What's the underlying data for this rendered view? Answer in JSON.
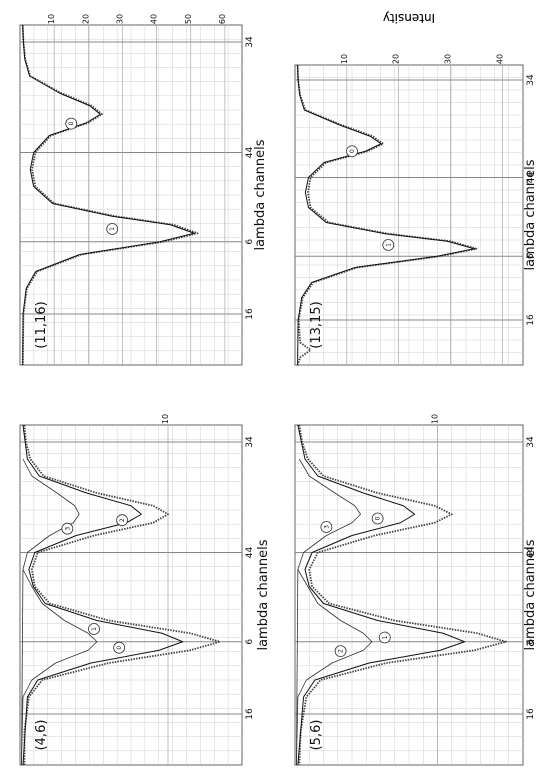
{
  "figure": {
    "shared_x_label": "lambda channels",
    "shared_y_label": "Intensity"
  },
  "chart_data": [
    {
      "type": "line",
      "title": "(4,6)",
      "xlabel": "lambda channels",
      "ylabel": "",
      "x_ticks": [
        "34",
        "44",
        "6",
        "16"
      ],
      "y_ticks": [
        "10"
      ],
      "ylim": [
        0,
        15
      ],
      "grid": true,
      "series": [
        {
          "values": [
            [
              0,
              0.3
            ],
            [
              2,
              0.4
            ],
            [
              4,
              0.7
            ],
            [
              6,
              1.6
            ],
            [
              8,
              5.2
            ],
            [
              9.5,
              9.0
            ],
            [
              10.5,
              10.0
            ],
            [
              11.5,
              9.0
            ],
            [
              13,
              5.0
            ],
            [
              15,
              1.2
            ],
            [
              17,
              0.8
            ],
            [
              19,
              1.0
            ],
            [
              21,
              2.0
            ],
            [
              23,
              6.0
            ],
            [
              24.5,
              11.5
            ],
            [
              25.5,
              13.5
            ],
            [
              26.5,
              11.5
            ],
            [
              28,
              6.0
            ],
            [
              30,
              1.5
            ],
            [
              32,
              0.6
            ],
            [
              36,
              0.3
            ],
            [
              40,
              0.3
            ]
          ]
        },
        {
          "values": [
            [
              0,
              0.2
            ],
            [
              4,
              0.5
            ],
            [
              6,
              1.3
            ],
            [
              8,
              4.5
            ],
            [
              9.5,
              7.5
            ],
            [
              10.5,
              8.2
            ],
            [
              11.5,
              7.2
            ],
            [
              13,
              3.8
            ],
            [
              15,
              1.0
            ],
            [
              17,
              0.6
            ],
            [
              19,
              0.9
            ],
            [
              21,
              1.7
            ],
            [
              23,
              5.2
            ],
            [
              24.5,
              9.6
            ],
            [
              25.5,
              11.0
            ],
            [
              26.5,
              9.4
            ],
            [
              28,
              4.8
            ],
            [
              30,
              1.2
            ],
            [
              32,
              0.5
            ],
            [
              40,
              0.2
            ]
          ]
        },
        {
          "values": [
            [
              4,
              0.2
            ],
            [
              6,
              0.8
            ],
            [
              8,
              2.5
            ],
            [
              9.5,
              3.7
            ],
            [
              10.5,
              4.0
            ],
            [
              11.5,
              3.6
            ],
            [
              13,
              2.0
            ],
            [
              15,
              0.5
            ],
            [
              17,
              0.2
            ],
            [
              40,
              0.1
            ]
          ]
        },
        {
          "values": [
            [
              17,
              0.2
            ],
            [
              19,
              0.8
            ],
            [
              21,
              1.5
            ],
            [
              23,
              3.0
            ],
            [
              24.5,
              4.6
            ],
            [
              25.5,
              5.2
            ],
            [
              26.5,
              4.6
            ],
            [
              28,
              2.4
            ],
            [
              30,
              0.8
            ],
            [
              32,
              0.2
            ],
            [
              40,
              0.1
            ]
          ]
        }
      ],
      "circle_labels": [
        {
          "label": "3",
          "x": 12.2,
          "y": 3.2
        },
        {
          "label": "2",
          "x": 11.2,
          "y": 6.9
        },
        {
          "label": "1",
          "x": 24.0,
          "y": 5.0
        },
        {
          "label": "0",
          "x": 26.2,
          "y": 6.7
        }
      ]
    },
    {
      "type": "line",
      "title": "(5,6)",
      "xlabel": "lambda channels",
      "ylabel": "Intensity",
      "x_ticks": [
        "34",
        "44",
        "6",
        "16"
      ],
      "y_ticks": [
        "10"
      ],
      "ylim": [
        0,
        16
      ],
      "grid": true,
      "series": [
        {
          "values": [
            [
              0,
              0.3
            ],
            [
              2,
              0.5
            ],
            [
              4,
              0.9
            ],
            [
              6,
              2.0
            ],
            [
              8,
              5.8
            ],
            [
              9.5,
              9.8
            ],
            [
              10.5,
              11.0
            ],
            [
              11.5,
              9.8
            ],
            [
              13,
              5.6
            ],
            [
              15,
              1.6
            ],
            [
              17,
              1.0
            ],
            [
              19,
              1.2
            ],
            [
              21,
              2.4
            ],
            [
              23,
              7.0
            ],
            [
              24.5,
              12.8
            ],
            [
              25.5,
              14.8
            ],
            [
              26.5,
              12.6
            ],
            [
              28,
              6.4
            ],
            [
              30,
              1.8
            ],
            [
              32,
              0.8
            ],
            [
              36,
              0.4
            ],
            [
              40,
              0.3
            ]
          ]
        },
        {
          "values": [
            [
              0,
              0.2
            ],
            [
              4,
              0.7
            ],
            [
              6,
              1.6
            ],
            [
              8,
              4.8
            ],
            [
              9.5,
              7.6
            ],
            [
              10.5,
              8.4
            ],
            [
              11.5,
              7.4
            ],
            [
              13,
              4.0
            ],
            [
              15,
              1.2
            ],
            [
              17,
              0.7
            ],
            [
              19,
              1.0
            ],
            [
              21,
              2.0
            ],
            [
              23,
              5.8
            ],
            [
              24.5,
              10.4
            ],
            [
              25.5,
              11.9
            ],
            [
              26.5,
              10.2
            ],
            [
              28,
              5.2
            ],
            [
              30,
              1.4
            ],
            [
              32,
              0.6
            ],
            [
              40,
              0.2
            ]
          ]
        },
        {
          "values": [
            [
              4,
              0.3
            ],
            [
              6,
              1.0
            ],
            [
              8,
              2.8
            ],
            [
              9.5,
              4.2
            ],
            [
              10.5,
              4.6
            ],
            [
              11.5,
              4.0
            ],
            [
              13,
              2.2
            ],
            [
              15,
              0.6
            ],
            [
              17,
              0.2
            ],
            [
              40,
              0.1
            ]
          ]
        },
        {
          "values": [
            [
              17,
              0.2
            ],
            [
              19,
              0.9
            ],
            [
              21,
              1.6
            ],
            [
              23,
              3.2
            ],
            [
              24.5,
              4.8
            ],
            [
              25.5,
              5.4
            ],
            [
              26.5,
              4.8
            ],
            [
              28,
              2.6
            ],
            [
              30,
              0.8
            ],
            [
              32,
              0.2
            ],
            [
              40,
              0.1
            ]
          ]
        }
      ],
      "circle_labels": [
        {
          "label": "3",
          "x": 12.0,
          "y": 2.2
        },
        {
          "label": "0",
          "x": 11.0,
          "y": 5.8
        },
        {
          "label": "2",
          "x": 26.6,
          "y": 3.2
        },
        {
          "label": "1",
          "x": 25.0,
          "y": 6.3
        }
      ]
    },
    {
      "type": "line",
      "title": "(11,16)",
      "xlabel": "lambda channels",
      "ylabel": "",
      "x_ticks": [
        "34",
        "44",
        "6",
        "16"
      ],
      "y_ticks": [
        "10",
        "20",
        "30",
        "40",
        "50",
        "60"
      ],
      "ylim": [
        0,
        65
      ],
      "grid": true,
      "series": [
        {
          "values": [
            [
              0,
              0.8
            ],
            [
              2,
              1.0
            ],
            [
              4,
              1.5
            ],
            [
              6,
              3.0
            ],
            [
              8,
              12.0
            ],
            [
              9.5,
              21.0
            ],
            [
              10.5,
              24.0
            ],
            [
              11.5,
              20.0
            ],
            [
              13,
              9.0
            ],
            [
              15,
              4.5
            ],
            [
              17,
              3.5
            ],
            [
              19,
              4.5
            ],
            [
              21,
              10.0
            ],
            [
              22.5,
              28.0
            ],
            [
              23.5,
              45.0
            ],
            [
              24.5,
              52.0
            ],
            [
              25.5,
              42.0
            ],
            [
              27,
              18.0
            ],
            [
              29,
              5.0
            ],
            [
              31,
              2.0
            ],
            [
              34,
              1.0
            ],
            [
              40,
              0.8
            ]
          ]
        },
        {
          "values": [
            [
              0,
              0.8
            ],
            [
              2,
              1.0
            ],
            [
              4,
              1.4
            ],
            [
              6,
              2.8
            ],
            [
              8,
              11.5
            ],
            [
              9.5,
              20.4
            ],
            [
              10.5,
              23.5
            ],
            [
              11.5,
              19.5
            ],
            [
              13,
              8.6
            ],
            [
              15,
              4.0
            ],
            [
              17,
              3.0
            ],
            [
              19,
              4.0
            ],
            [
              21,
              9.5
            ],
            [
              22.5,
              27.0
            ],
            [
              23.5,
              44.0
            ],
            [
              24.5,
              51.0
            ],
            [
              25.5,
              41.0
            ],
            [
              27,
              17.5
            ],
            [
              29,
              4.6
            ],
            [
              31,
              1.8
            ],
            [
              34,
              0.9
            ],
            [
              40,
              0.8
            ]
          ]
        }
      ],
      "circle_labels": [
        {
          "label": "0",
          "x": 11.6,
          "y": 15.0
        },
        {
          "label": "1",
          "x": 24.0,
          "y": 27.0
        }
      ]
    },
    {
      "type": "line",
      "title": "(13,15)",
      "xlabel": "lambda channels",
      "ylabel": "Intensity",
      "x_ticks": [
        "34",
        "44",
        "6",
        "16"
      ],
      "y_ticks": [
        "10",
        "20",
        "30",
        "40"
      ],
      "ylim": [
        0,
        44
      ],
      "grid": true,
      "series": [
        {
          "values": [
            [
              0,
              0.5
            ],
            [
              2,
              0.6
            ],
            [
              4,
              1.0
            ],
            [
              6,
              2.0
            ],
            [
              8,
              9.0
            ],
            [
              9.5,
              15.0
            ],
            [
              10.5,
              17.0
            ],
            [
              11.5,
              14.0
            ],
            [
              13,
              6.0
            ],
            [
              15,
              3.0
            ],
            [
              17,
              2.5
            ],
            [
              19,
              3.0
            ],
            [
              21,
              6.5
            ],
            [
              22.5,
              18.0
            ],
            [
              23.5,
              30.0
            ],
            [
              24.5,
              35.0
            ],
            [
              25.5,
              28.0
            ],
            [
              27,
              12.0
            ],
            [
              29,
              3.5
            ],
            [
              31,
              1.5
            ],
            [
              34,
              0.7
            ],
            [
              37,
              1.0
            ],
            [
              38,
              3.0
            ],
            [
              39,
              1.0
            ],
            [
              40,
              0.5
            ]
          ]
        },
        {
          "values": [
            [
              0,
              0.5
            ],
            [
              2,
              0.6
            ],
            [
              4,
              0.9
            ],
            [
              6,
              1.8
            ],
            [
              8,
              8.6
            ],
            [
              9.5,
              14.5
            ],
            [
              10.5,
              16.6
            ],
            [
              11.5,
              13.6
            ],
            [
              13,
              5.6
            ],
            [
              15,
              2.6
            ],
            [
              17,
              2.0
            ],
            [
              19,
              2.6
            ],
            [
              21,
              6.0
            ],
            [
              22.5,
              17.4
            ],
            [
              23.5,
              29.4
            ],
            [
              24.5,
              34.6
            ],
            [
              25.5,
              27.4
            ],
            [
              27,
              11.6
            ],
            [
              29,
              3.2
            ],
            [
              31,
              1.3
            ],
            [
              34,
              0.6
            ],
            [
              40,
              0.5
            ]
          ]
        }
      ],
      "circle_labels": [
        {
          "label": "0",
          "x": 11.5,
          "y": 11.0
        },
        {
          "label": "1",
          "x": 24.0,
          "y": 18.0
        }
      ]
    }
  ]
}
